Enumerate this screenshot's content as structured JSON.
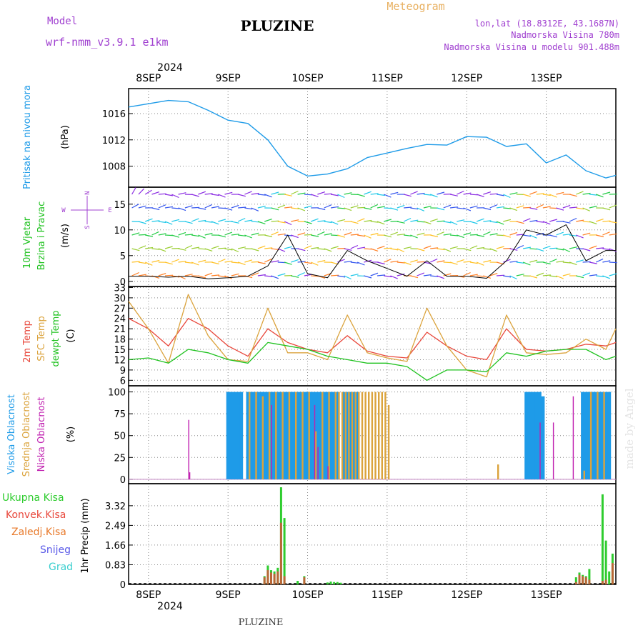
{
  "header": {
    "model_label": "Model",
    "model_name": "wrf-nmm_v3.9.1 e1km",
    "station": "PLUZINE",
    "product": "Meteogram",
    "coords": "lon,lat (18.8312E, 43.1687N)",
    "elevation": "Nadmorska Visina 780m",
    "model_elevation": "Nadmorska Visina u modelu 901.488m",
    "watermark": "made by Angel",
    "footer": "PLUZINE"
  },
  "time_axis": {
    "year": "2024",
    "labels": [
      "8SEP",
      "9SEP",
      "10SEP",
      "11SEP",
      "12SEP",
      "13SEP"
    ],
    "range_hours": [
      -6,
      141
    ]
  },
  "colors": {
    "pressure": "#1e9be8",
    "t2m": "#e8463a",
    "sfc": "#dba33c",
    "dewpt": "#1fc21f",
    "high_cloud": "#1e9be8",
    "mid_cloud": "#dba33c",
    "low_cloud": "#c020b0",
    "total_precip": "#2ecc2e",
    "conv_precip": "#e8463a",
    "frozen_precip": "#e8792a",
    "snow": "#5a5ae8",
    "graupel": "#3ccfcf",
    "grid": "#888888"
  },
  "panels": {
    "pressure": {
      "ylabel_name": "Pritisak na nivou mora",
      "unit": "(hPa)",
      "ticks": [
        "1008",
        "1012",
        "1016"
      ]
    },
    "wind": {
      "ylabel_name_1": "10m Vjetar",
      "ylabel_name_2": "Brzina i Pravac",
      "unit": "(m/s)",
      "ticks": [
        "0",
        "5",
        "10",
        "15"
      ],
      "compass": {
        "n": "N",
        "s": "S",
        "e": "E",
        "w": "W"
      }
    },
    "temperature": {
      "label_t2m": "2m Temp",
      "label_sfc": "SFC Temp",
      "label_dewpt": "dewpt Temp",
      "unit": "(C)",
      "ticks": [
        "6",
        "9",
        "12",
        "15",
        "18",
        "21",
        "24",
        "27",
        "30",
        "33"
      ]
    },
    "cloud": {
      "label_high": "Visoka Oblacnost",
      "label_mid": "Srednja Oblacnost",
      "label_low": "Niska Oblacnost",
      "unit": "(%)",
      "ticks": [
        "0",
        "25",
        "50",
        "75",
        "100"
      ]
    },
    "precip": {
      "label_total": "Ukupna Kisa",
      "label_conv": "Konvek.Kisa",
      "label_frozen": "Zaledj.Kisa",
      "label_snow": "Snijeg",
      "label_graupel": "Grad",
      "ylabel": "1hr Precip (mm)",
      "ticks": [
        "0",
        "0.83",
        "1.66",
        "2.49",
        "3.32"
      ]
    }
  },
  "chart_data": [
    {
      "type": "line",
      "panel": "pressure",
      "ylabel": "Pritisak na nivou mora (hPa)",
      "ylim": [
        1004.8,
        1019.8
      ],
      "x_hours": [
        -6,
        0,
        6,
        12,
        18,
        24,
        30,
        36,
        42,
        48,
        54,
        60,
        66,
        72,
        78,
        84,
        90,
        96,
        102,
        108,
        114,
        120,
        126,
        132,
        138,
        141
      ],
      "series": [
        {
          "values": [
            1017,
            1017.5,
            1018,
            1017.8,
            1016.5,
            1015,
            1014.5,
            1012,
            1008,
            1006.5,
            1006.8,
            1007.6,
            1009.3,
            1010,
            1010.7,
            1011.3,
            1011.2,
            1012.5,
            1012.4,
            1011,
            1011.4,
            1008.5,
            1009.7,
            1007.3,
            1006.2,
            1006.6
          ]
        }
      ]
    },
    {
      "type": "line",
      "panel": "wind",
      "ylabel": "10m Vjetar Brzina i Pravac (m/s)",
      "ylim": [
        -1,
        18.3
      ],
      "x_hours": [
        -6,
        0,
        6,
        12,
        18,
        24,
        30,
        36,
        42,
        48,
        54,
        60,
        66,
        72,
        78,
        84,
        90,
        96,
        102,
        108,
        114,
        120,
        126,
        132,
        138,
        141
      ],
      "series": [
        {
          "values": [
            1,
            1,
            0.8,
            1,
            0.5,
            0.7,
            1,
            3,
            9,
            1.5,
            0.7,
            6,
            4,
            2.5,
            1,
            4,
            1,
            1,
            0.6,
            4,
            10,
            9,
            11,
            4,
            6,
            6
          ]
        }
      ],
      "barb_direction": "variable"
    },
    {
      "type": "line",
      "panel": "temperature",
      "ylabel": "(C)",
      "ylim": [
        4.4,
        33.3
      ],
      "x_hours": [
        -6,
        0,
        6,
        12,
        18,
        24,
        30,
        36,
        42,
        48,
        54,
        60,
        66,
        72,
        78,
        84,
        90,
        96,
        102,
        108,
        114,
        120,
        126,
        132,
        138,
        141
      ],
      "series": [
        {
          "name": "2m Temp",
          "values": [
            24,
            21,
            16,
            24,
            21,
            16,
            13,
            21,
            17,
            15,
            14,
            19,
            14.5,
            13,
            12.5,
            20,
            16,
            13,
            12,
            21,
            15,
            14.5,
            15,
            16.5,
            16,
            17
          ]
        },
        {
          "name": "SFC Temp",
          "values": [
            29,
            21,
            11,
            31,
            19,
            12,
            11.5,
            27,
            14,
            14,
            12,
            25,
            14,
            12.5,
            11.5,
            27,
            16,
            9,
            7,
            25,
            14,
            13.5,
            14,
            18,
            15,
            21
          ]
        },
        {
          "name": "dewpt Temp",
          "values": [
            12,
            12.5,
            11,
            15,
            14,
            12,
            11,
            17,
            16,
            15,
            13,
            12,
            11,
            11,
            10,
            6,
            9,
            9,
            8.5,
            14,
            13,
            14.5,
            15,
            15,
            12,
            13
          ]
        }
      ]
    },
    {
      "type": "bar",
      "panel": "cloud",
      "ylabel": "(%)",
      "ylim": [
        -5,
        107
      ],
      "series": [
        {
          "name": "Visoka Oblacnost",
          "x_hours": [
            24,
            25,
            26,
            27,
            28,
            30,
            31,
            32,
            33,
            34,
            35,
            36,
            37,
            38,
            39,
            40,
            41,
            42,
            43,
            44,
            45,
            46,
            47,
            48,
            49,
            50,
            51,
            52,
            53,
            54,
            55,
            56,
            57,
            59,
            60,
            61,
            62,
            63,
            114,
            115,
            116,
            117,
            118,
            119,
            131,
            132,
            133,
            134,
            135,
            136,
            137,
            138,
            139
          ],
          "values": [
            100,
            100,
            100,
            100,
            100,
            100,
            100,
            100,
            100,
            100,
            100,
            100,
            100,
            100,
            100,
            100,
            100,
            100,
            100,
            100,
            100,
            100,
            100,
            100,
            100,
            100,
            100,
            100,
            100,
            100,
            100,
            100,
            100,
            100,
            100,
            100,
            100,
            100,
            100,
            100,
            100,
            100,
            100,
            95,
            100,
            100,
            100,
            100,
            100,
            100,
            100,
            100,
            100
          ]
        },
        {
          "name": "Srednja Oblacnost",
          "x_hours": [
            30,
            32,
            34,
            36,
            38,
            40,
            42,
            44,
            46,
            48,
            50,
            52,
            54,
            56,
            57,
            58,
            59,
            60,
            61,
            62,
            63,
            64,
            65,
            66,
            67,
            68,
            69,
            70,
            71,
            72,
            105,
            131,
            133,
            135,
            137
          ],
          "values": [
            100,
            100,
            95,
            100,
            100,
            100,
            100,
            100,
            100,
            100,
            55,
            100,
            100,
            100,
            100,
            100,
            100,
            100,
            100,
            100,
            100,
            100,
            100,
            100,
            100,
            100,
            100,
            100,
            100,
            85,
            17,
            10,
            100,
            100,
            100
          ]
        },
        {
          "name": "Niska Oblacnost",
          "x_hours": [
            12,
            12.3,
            37,
            50,
            51,
            54,
            118,
            122,
            128
          ],
          "values": [
            68,
            8,
            85,
            85,
            37,
            15,
            65,
            65,
            95
          ]
        }
      ]
    },
    {
      "type": "bar",
      "panel": "precip",
      "ylabel": "1hr Precip (mm)",
      "ylim": [
        0,
        4.25
      ],
      "series": [
        {
          "name": "Ukupna Kisa",
          "x_hours": [
            35,
            36,
            37,
            38,
            39,
            40,
            41,
            45,
            47,
            54,
            55,
            56,
            57,
            58,
            129,
            130,
            131,
            132,
            133,
            137,
            138,
            139,
            140
          ],
          "values": [
            0.35,
            0.8,
            0.6,
            0.55,
            0.7,
            4.1,
            2.8,
            0.15,
            0.35,
            0.08,
            0.12,
            0.1,
            0.1,
            0.07,
            0.3,
            0.5,
            0.4,
            0.35,
            0.65,
            3.8,
            1.85,
            0.55,
            1.3
          ]
        },
        {
          "name": "Konvek.Kisa",
          "x_hours": [
            35,
            36,
            37,
            38,
            39,
            40,
            41,
            47,
            129,
            130,
            131,
            132,
            133,
            137,
            138,
            140
          ],
          "values": [
            0.3,
            0.6,
            0.5,
            0.45,
            0.55,
            2.6,
            0.35,
            0.3,
            0.1,
            0.4,
            0.35,
            0.3,
            0.2,
            0.15,
            0.2,
            0.9
          ]
        }
      ]
    }
  ]
}
